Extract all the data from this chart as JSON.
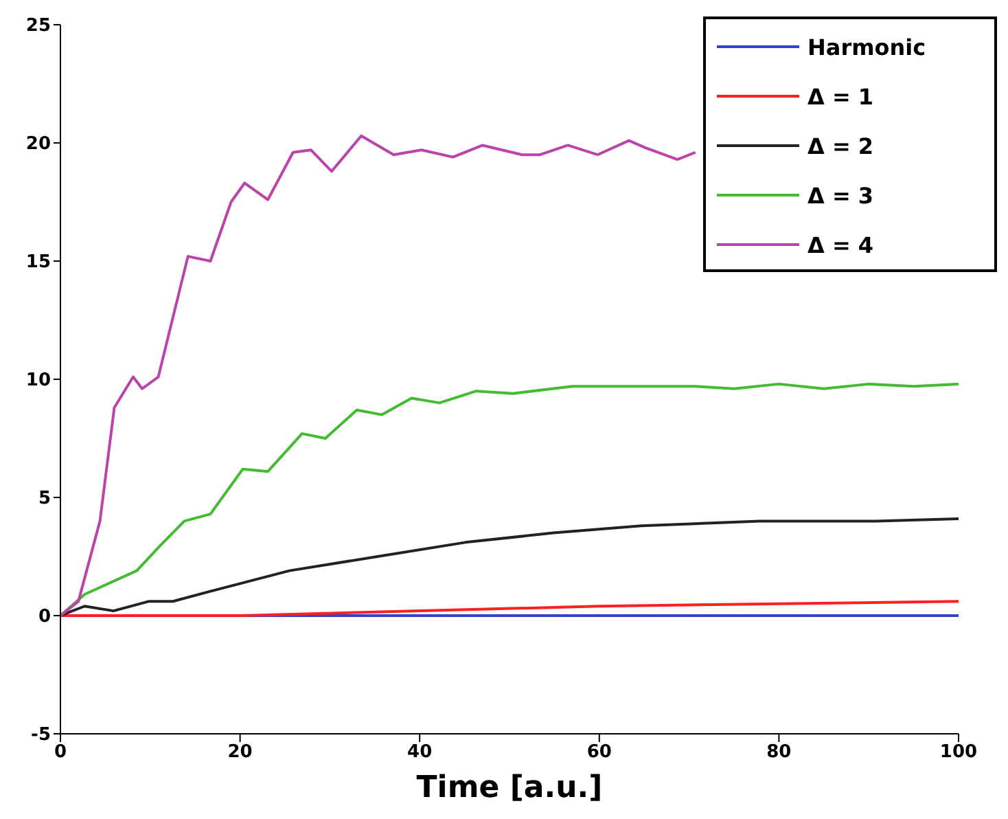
{
  "chart_data": {
    "type": "line",
    "xlabel": "Time [a.u.]",
    "xlim": [
      0,
      100
    ],
    "xticks": [
      0,
      20,
      40,
      60,
      80,
      100
    ],
    "ylim": [
      -5,
      25
    ],
    "yticks": [
      -5,
      0,
      5,
      10,
      15,
      20,
      25
    ],
    "legend": "top right",
    "grid": false,
    "marker": "none",
    "line_style": "solid",
    "series": [
      {
        "name": "Harmonic",
        "color": "#3344cc",
        "x": [
          0,
          100
        ],
        "values": [
          0,
          0
        ]
      },
      {
        "name": "Δ = 1",
        "color": "#ff2020",
        "x": [
          0,
          10,
          20,
          40,
          60,
          80,
          100
        ],
        "values": [
          0,
          0,
          0,
          0.2,
          0.4,
          0.5,
          0.6
        ]
      },
      {
        "name": "Δ = 2",
        "color": "#222222",
        "x": [
          0,
          2.7,
          5.9,
          9.8,
          12.5,
          16.4,
          25.5,
          35.3,
          45.1,
          54.9,
          64.7,
          77.8,
          90.8,
          100
        ],
        "values": [
          0,
          0.4,
          0.2,
          0.6,
          0.6,
          1.0,
          1.9,
          2.5,
          3.1,
          3.5,
          3.8,
          4.0,
          4.0,
          4.1
        ]
      },
      {
        "name": "Δ = 3",
        "color": "#44bb33",
        "x": [
          0,
          2.7,
          8.5,
          11.2,
          13.8,
          16.7,
          20.3,
          23.1,
          26.9,
          29.5,
          33,
          35.8,
          39.1,
          42.2,
          46.3,
          50.4,
          57,
          63.1,
          70.7,
          75,
          80,
          85,
          90,
          95,
          100
        ],
        "values": [
          0,
          0.9,
          1.9,
          3,
          4,
          4.3,
          6.2,
          6.1,
          7.7,
          7.5,
          8.7,
          8.5,
          9.2,
          9.0,
          9.5,
          9.4,
          9.7,
          9.7,
          9.7,
          9.6,
          9.8,
          9.6,
          9.8,
          9.7,
          9.8
        ]
      },
      {
        "name": "Δ = 4",
        "color": "#bb44aa",
        "x": [
          0,
          2,
          4.4,
          6,
          8.1,
          9.1,
          10.9,
          14.2,
          16.7,
          19,
          20.5,
          23.1,
          25.9,
          27.9,
          30.2,
          33.5,
          37.1,
          40.2,
          43.7,
          47,
          51.4,
          53.4,
          56.5,
          59.8,
          63.3,
          65.1,
          68.7,
          70.7
        ],
        "values": [
          0,
          0.6,
          4.0,
          8.8,
          10.1,
          9.6,
          10.1,
          15.2,
          15,
          17.5,
          18.3,
          17.6,
          19.6,
          19.7,
          18.8,
          20.3,
          19.5,
          19.7,
          19.4,
          19.9,
          19.5,
          19.5,
          19.9,
          19.5,
          20.1,
          19.8,
          19.3,
          19.6
        ]
      }
    ]
  }
}
